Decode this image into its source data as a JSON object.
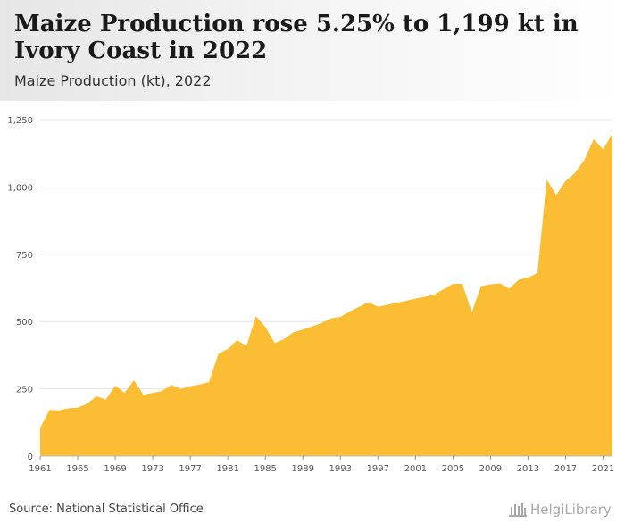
{
  "header": {
    "title": "Maize Production rose 5.25% to 1,199 kt in Ivory Coast in 2022",
    "subtitle": "Maize Production (kt), 2022"
  },
  "footer": {
    "source": "Source: National Statistical Office",
    "logo_text": "HelgiLibrary"
  },
  "colors": {
    "area": "#fbbd33",
    "grid": "#e4e4e4",
    "axis_text": "#555555"
  },
  "chart_data": {
    "type": "area",
    "title": "Maize Production rose 5.25% to 1,199 kt in Ivory Coast in 2022",
    "ylabel": "",
    "xlabel": "",
    "ylim": [
      0,
      1250
    ],
    "y_ticks": [
      0,
      250,
      500,
      750,
      1000,
      1250
    ],
    "y_tick_labels": [
      "0",
      "250",
      "500",
      "750",
      "1,000",
      "1,250"
    ],
    "x_ticks": [
      1961,
      1965,
      1969,
      1973,
      1977,
      1981,
      1985,
      1989,
      1993,
      1997,
      2001,
      2005,
      2009,
      2013,
      2017,
      2021
    ],
    "grid": true,
    "legend": "none",
    "series": [
      {
        "x": [
          1961,
          1962,
          1963,
          1964,
          1965,
          1966,
          1967,
          1968,
          1969,
          1970,
          1971,
          1972,
          1973,
          1974,
          1975,
          1976,
          1977,
          1978,
          1979,
          1980,
          1981,
          1982,
          1983,
          1984,
          1985,
          1986,
          1987,
          1988,
          1989,
          1990,
          1991,
          1992,
          1993,
          1994,
          1995,
          1996,
          1997,
          1998,
          1999,
          2000,
          2001,
          2002,
          2003,
          2004,
          2005,
          2006,
          2007,
          2008,
          2009,
          2010,
          2011,
          2012,
          2013,
          2014,
          2015,
          2016,
          2017,
          2018,
          2019,
          2020,
          2021,
          2022
        ],
        "values": [
          105,
          172,
          170,
          178,
          180,
          195,
          222,
          210,
          262,
          235,
          282,
          228,
          235,
          242,
          265,
          250,
          260,
          266,
          275,
          380,
          398,
          430,
          410,
          520,
          480,
          420,
          435,
          460,
          470,
          482,
          495,
          512,
          517,
          538,
          555,
          572,
          555,
          562,
          570,
          577,
          585,
          592,
          600,
          620,
          640,
          640,
          535,
          632,
          638,
          642,
          622,
          655,
          663,
          680,
          1028,
          970,
          1022,
          1052,
          1100,
          1178,
          1139,
          1199
        ]
      }
    ]
  }
}
